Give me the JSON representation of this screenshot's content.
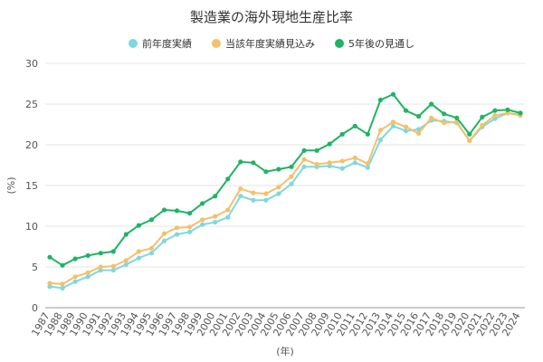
{
  "chart_data": {
    "type": "line",
    "title": "製造業の海外現地生産比率",
    "xlabel": "(年)",
    "ylabel": "(%)",
    "ylim": [
      0,
      30
    ],
    "yticks": [
      0,
      5,
      10,
      15,
      20,
      25,
      30
    ],
    "grid": true,
    "legend_position": "top",
    "x": [
      "1987",
      "1988",
      "1989",
      "1990",
      "1991",
      "1992",
      "1993",
      "1994",
      "1995",
      "1996",
      "1997",
      "1998",
      "1999",
      "2000",
      "2001",
      "2002",
      "2003",
      "2004",
      "2005",
      "2006",
      "2007",
      "2008",
      "2009",
      "2010",
      "2011",
      "2012",
      "2013",
      "2014",
      "2015",
      "2016",
      "2017",
      "2018",
      "2019",
      "2020",
      "2021",
      "2022",
      "2023",
      "2024"
    ],
    "series": [
      {
        "name": "前年度実績",
        "color": "#7ed8e0",
        "values": [
          2.6,
          2.4,
          3.2,
          3.8,
          4.6,
          4.6,
          5.3,
          6.1,
          6.7,
          8.2,
          9.0,
          9.3,
          10.2,
          10.5,
          11.1,
          13.7,
          13.2,
          13.2,
          14.0,
          15.2,
          17.3,
          17.3,
          17.4,
          17.1,
          17.8,
          17.2,
          20.6,
          22.3,
          21.7,
          21.9,
          23.0,
          22.9,
          22.7,
          20.5,
          22.2,
          23.2,
          23.9,
          23.7
        ]
      },
      {
        "name": "当該年度実績見込み",
        "color": "#f4c06a",
        "values": [
          3.0,
          2.9,
          3.8,
          4.3,
          5.0,
          5.1,
          5.8,
          6.9,
          7.3,
          9.1,
          9.8,
          9.9,
          10.8,
          11.2,
          12.0,
          14.6,
          14.1,
          14.0,
          14.8,
          16.1,
          18.2,
          17.6,
          17.8,
          18.0,
          18.4,
          17.7,
          21.8,
          22.8,
          22.2,
          21.4,
          23.3,
          22.7,
          22.8,
          20.5,
          22.4,
          23.6,
          23.9,
          23.6
        ]
      },
      {
        "name": "5年後の見通し",
        "color": "#1fb364",
        "values": [
          6.2,
          5.2,
          6.0,
          6.4,
          6.7,
          6.9,
          9.0,
          10.1,
          10.8,
          12.0,
          11.9,
          11.6,
          12.8,
          13.7,
          15.8,
          17.9,
          17.8,
          16.7,
          17.0,
          17.3,
          19.3,
          19.3,
          20.1,
          21.3,
          22.3,
          21.3,
          25.5,
          26.2,
          24.2,
          23.5,
          25.0,
          23.8,
          23.3,
          21.3,
          23.4,
          24.2,
          24.3,
          23.9
        ]
      }
    ]
  }
}
